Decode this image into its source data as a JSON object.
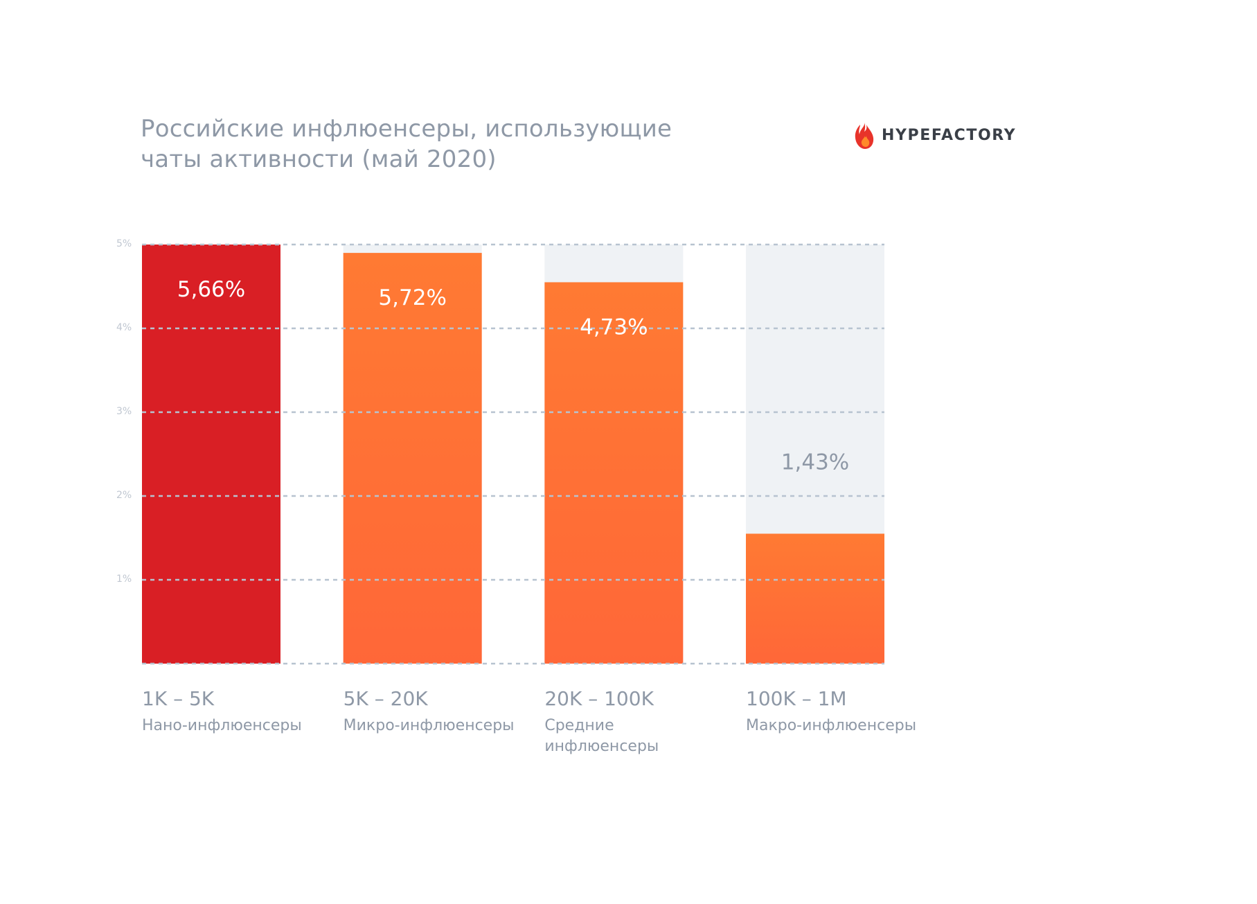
{
  "header": {
    "title_line1": "Российские инфлюенсеры, использующие",
    "title_line2": "чаты активности (май 2020)"
  },
  "logo": {
    "icon": "flame-icon",
    "text": "HYPEFACTORY",
    "colors": {
      "flame_outer": "#e8332a",
      "flame_inner": "#ff8a2a",
      "text": "#3a3f47"
    }
  },
  "chart_data": {
    "type": "bar",
    "title": "Российские инфлюенсеры, использующие чаты активности (май 2020)",
    "xlabel": "",
    "ylabel": "",
    "ylim": [
      0,
      5
    ],
    "yticks": [
      "1%",
      "2%",
      "3%",
      "4%",
      "5%"
    ],
    "grid": true,
    "gridline_style": "dashed",
    "categories": [
      "1K – 5K",
      "5K – 20K",
      "20K – 100K",
      "100K – 1M"
    ],
    "category_sublabels": [
      [
        "Нано-инфлюенсеры"
      ],
      [
        "Микро-инфлюенсеры"
      ],
      [
        "Средние",
        "инфлюенсеры"
      ],
      [
        "Макро-инфлюенсеры"
      ]
    ],
    "values": [
      5.66,
      5.72,
      4.73,
      1.43
    ],
    "value_labels": [
      "5,66%",
      "5,72%",
      "4,73%",
      "1,43%"
    ],
    "bar_visible_tops": [
      5.0,
      4.9,
      4.55,
      1.55
    ],
    "bar_colors": [
      "#d91f25",
      "#ff6b35",
      "#ff6b35",
      "#ff6b35"
    ],
    "background_column_color": "#eff2f5",
    "gridline_color": "#b7c3d0",
    "label_inside_color": "#ffffff",
    "label_outside_color": "#8e98a6",
    "axis_text_color": "#c0c7d1",
    "category_text_color": "#8e98a6"
  }
}
